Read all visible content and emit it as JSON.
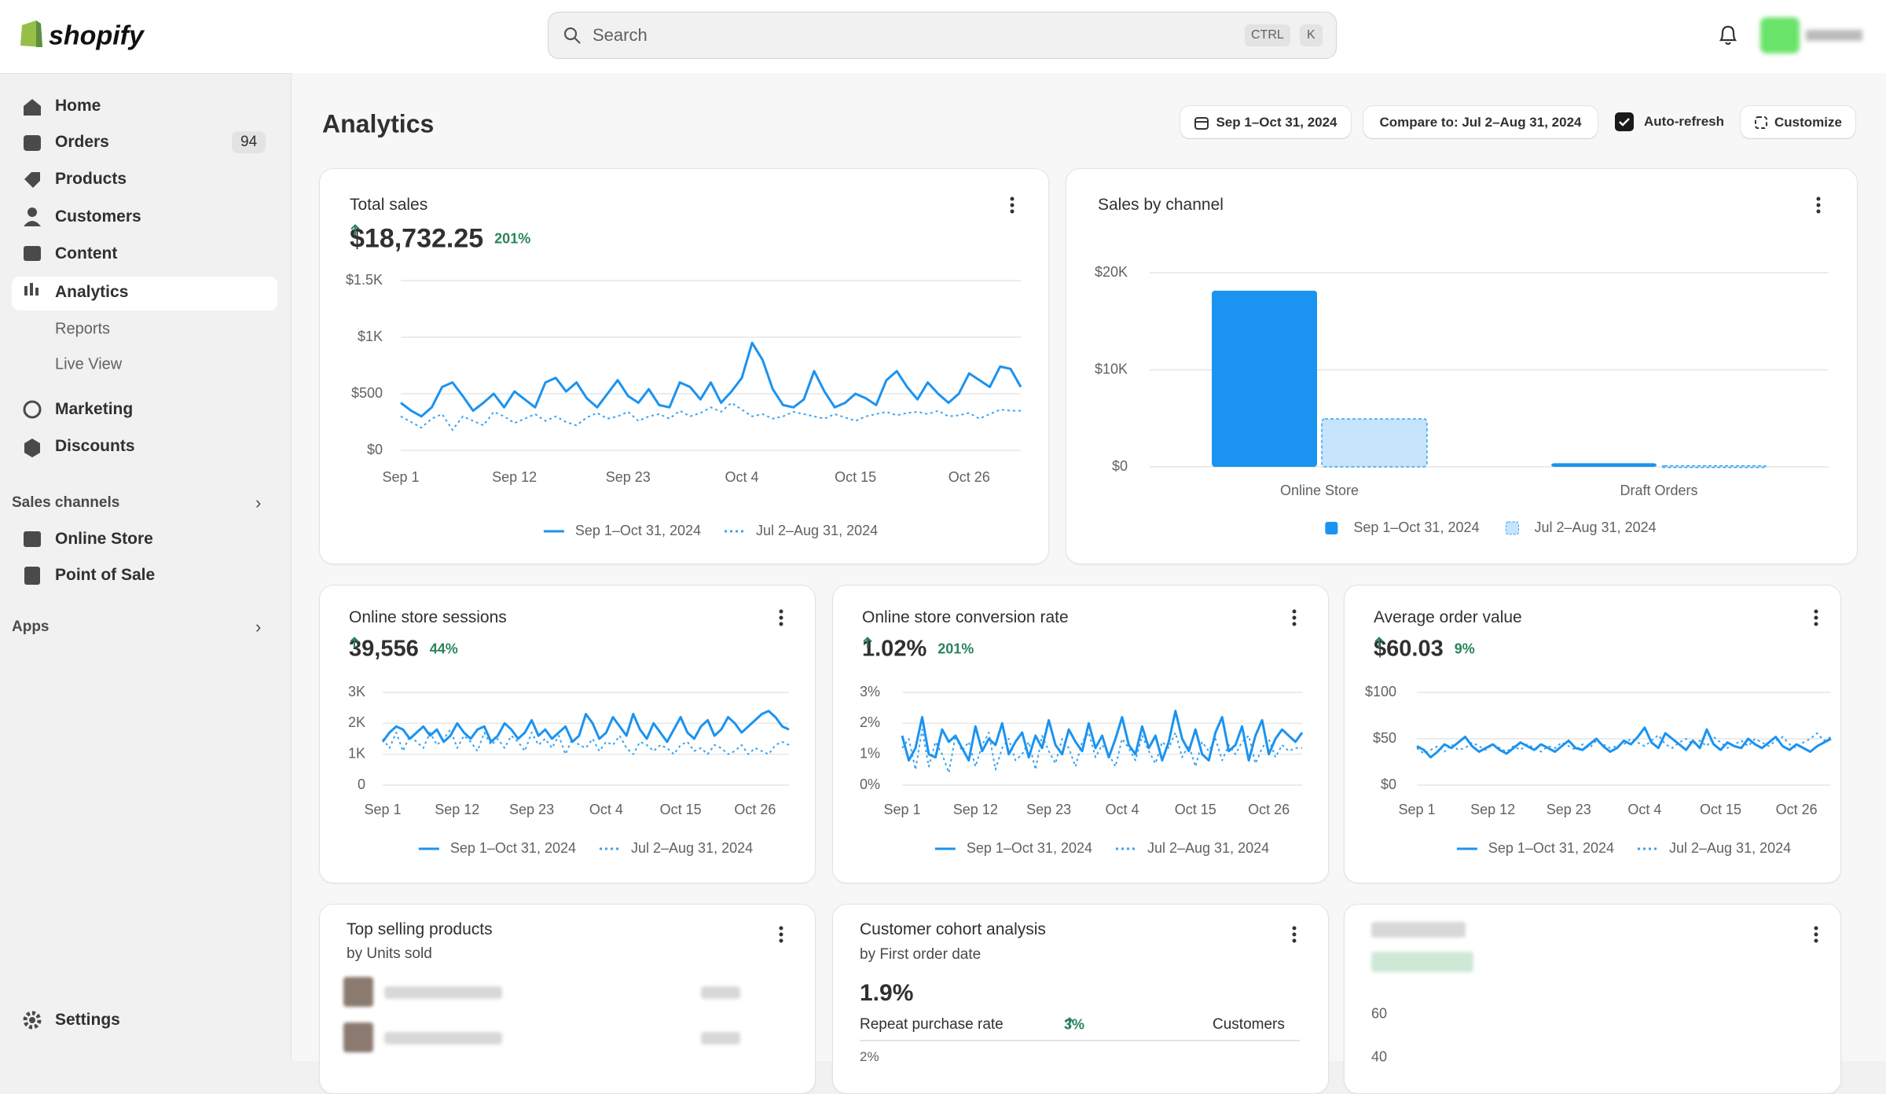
{
  "header": {
    "logo": "shopify",
    "search": "Search",
    "shortcut": [
      "CTRL",
      "K"
    ]
  },
  "nav": {
    "items": [
      {
        "label": "Home"
      },
      {
        "label": "Orders",
        "badge": 94
      },
      {
        "label": "Products"
      },
      {
        "label": "Customers"
      },
      {
        "label": "Content"
      },
      {
        "label": "Analytics"
      }
    ],
    "analytics_sub": [
      "Reports",
      "Live View"
    ],
    "items2": [
      "Marketing",
      "Discounts"
    ],
    "sales_channels": "Sales channels",
    "channels": [
      "Online Store",
      "Point of Sale"
    ],
    "apps": "Apps",
    "settings": "Settings"
  },
  "page": {
    "title": "Analytics",
    "date_range": "Sep 1–Oct 31, 2024",
    "compare": "Compare to: Jul 2–Aug 31, 2024",
    "auto_refresh": "Auto-refresh",
    "customize": "Customize"
  },
  "cards": [
    {
      "title": "Total sales",
      "metric": "$18,732.25",
      "change": "201%",
      "chart": {
        "type": "line",
        "categories": [
          "Sep 1",
          null,
          null,
          null,
          null,
          null,
          null,
          null,
          null,
          null,
          null,
          "Sep 12",
          null,
          null,
          null,
          null,
          null,
          null,
          null,
          null,
          null,
          null,
          "Sep 23",
          null,
          null,
          null,
          null,
          null,
          null,
          null,
          null,
          null,
          null,
          "Oct 4",
          null,
          null,
          null,
          null,
          null,
          null,
          null,
          null,
          null,
          null,
          "Oct 15",
          null,
          null,
          null,
          null,
          null,
          null,
          null,
          null,
          null,
          null,
          "Oct 26",
          null,
          null,
          null,
          null,
          null
        ],
        "ylim": [
          0,
          1500
        ],
        "yticks": [
          {
            "value": 0,
            "label": "$0"
          },
          {
            "value": 500,
            "label": "$500"
          },
          {
            "value": 1000,
            "label": "$1K"
          },
          {
            "value": 1500,
            "label": "$1.5K"
          }
        ],
        "grid": true,
        "series": [
          {
            "name": "Sep 1–Oct 31, 2024",
            "color": "#1b93f0",
            "line_style": "solid",
            "values": [
              420,
              350,
              300,
              380,
              560,
              600,
              480,
              350,
              420,
              500,
              380,
              520,
              450,
              380,
              600,
              640,
              520,
              600,
              460,
              380,
              500,
              620,
              480,
              420,
              540,
              400,
              380,
              600,
              560,
              450,
              600,
              420,
              520,
              640,
              950,
              800,
              540,
              400,
              380,
              450,
              700,
              520,
              380,
              420,
              500,
              460,
              400,
              620,
              700,
              560,
              450,
              600,
              500,
              420,
              500,
              680,
              620,
              560,
              740,
              720,
              560
            ]
          },
          {
            "name": "Jul 2–Aug 31, 2024",
            "color": "#3aa3ee",
            "line_style": "dotted",
            "values": [
              300,
              250,
              200,
              280,
              320,
              180,
              300,
              260,
              220,
              340,
              300,
              240,
              280,
              320,
              260,
              300,
              250,
              220,
              290,
              330,
              280,
              300,
              340,
              260,
              300,
              320,
              280,
              350,
              300,
              330,
              380,
              340,
              420,
              360,
              300,
              320,
              280,
              300,
              340,
              320,
              300,
              280,
              320,
              290,
              260,
              300,
              320,
              340,
              310,
              330,
              340,
              320,
              350,
              300,
              310,
              330,
              280,
              320,
              360,
              350,
              350
            ]
          }
        ]
      }
    },
    {
      "title": "Sales by channel",
      "chart": {
        "type": "bar",
        "categories": [
          "Online Store",
          "Draft Orders"
        ],
        "ylim": [
          0,
          20000
        ],
        "yticks": [
          {
            "value": 0,
            "label": "$0"
          },
          {
            "value": 10000,
            "label": "$10K"
          },
          {
            "value": 20000,
            "label": "$20K"
          }
        ],
        "grid": true,
        "series": [
          {
            "name": "Sep 1–Oct 31, 2024",
            "color": "#1b93f0",
            "border_style": "none",
            "values": [
              18150,
              370
            ]
          },
          {
            "name": "Jul 2–Aug 31, 2024",
            "color": "#c6e4fb",
            "border_style": "dashed",
            "border_color": "#3aa3ee",
            "values": [
              4940,
              100
            ]
          }
        ]
      }
    },
    {
      "title": "Online store sessions",
      "metric": "39,556",
      "change": "44%",
      "chart": {
        "type": "line",
        "categories": [
          "Sep 1",
          null,
          null,
          null,
          null,
          null,
          null,
          null,
          null,
          null,
          null,
          "Sep 12",
          null,
          null,
          null,
          null,
          null,
          null,
          null,
          null,
          null,
          null,
          "Sep 23",
          null,
          null,
          null,
          null,
          null,
          null,
          null,
          null,
          null,
          null,
          "Oct 4",
          null,
          null,
          null,
          null,
          null,
          null,
          null,
          null,
          null,
          null,
          "Oct 15",
          null,
          null,
          null,
          null,
          null,
          null,
          null,
          null,
          null,
          null,
          "Oct 26",
          null,
          null,
          null,
          null,
          null
        ],
        "ylim": [
          0,
          3000
        ],
        "yticks": [
          0,
          {
            "value": 1000,
            "label": "1K"
          },
          {
            "value": 2000,
            "label": "2K"
          },
          {
            "value": 3000,
            "label": "3K"
          }
        ],
        "grid": true,
        "series": [
          {
            "name": "Sep 1–Oct 31, 2024",
            "color": "#1b93f0",
            "line_style": "solid",
            "values": [
              1400,
              1700,
              1900,
              1800,
              1500,
              1700,
              1900,
              1600,
              1800,
              1400,
              1600,
              2000,
              1700,
              1500,
              1800,
              1900,
              1400,
              1600,
              2000,
              1800,
              1500,
              1700,
              2100,
              1600,
              1800,
              1500,
              1700,
              1900,
              1400,
              1600,
              2300,
              2000,
              1500,
              1700,
              2200,
              1900,
              1600,
              2300,
              1800,
              1500,
              2000,
              1700,
              1400,
              1800,
              2200,
              1700,
              1500,
              1900,
              2100,
              1600,
              1800,
              2200,
              2000,
              1700,
              1900,
              2100,
              2300,
              2400,
              2200,
              1900,
              1800
            ]
          },
          {
            "name": "Jul 2–Aug 31, 2024",
            "color": "#3aa3ee",
            "line_style": "dotted",
            "values": [
              1500,
              1200,
              1700,
              1100,
              1600,
              1400,
              1200,
              1700,
              1300,
              1500,
              1800,
              1200,
              1600,
              1400,
              1100,
              1700,
              1300,
              1500,
              1200,
              1600,
              1400,
              1100,
              1700,
              1300,
              1500,
              1200,
              1600,
              1000,
              1500,
              1300,
              1200,
              1500,
              1100,
              1400,
              1300,
              1600,
              1200,
              1000,
              1400,
              1300,
              1100,
              1300,
              1200,
              1000,
              1300,
              1400,
              1100,
              1200,
              1000,
              1300,
              1200,
              1000,
              1100,
              1300,
              1000,
              1200,
              1100,
              1000,
              1300,
              1400,
              1300
            ]
          }
        ]
      }
    },
    {
      "title": "Online store conversion rate",
      "metric": "1.02%",
      "change": "201%",
      "chart": {
        "type": "line",
        "categories": [
          "Sep 1",
          null,
          null,
          null,
          null,
          null,
          null,
          null,
          null,
          null,
          null,
          "Sep 12",
          null,
          null,
          null,
          null,
          null,
          null,
          null,
          null,
          null,
          null,
          "Sep 23",
          null,
          null,
          null,
          null,
          null,
          null,
          null,
          null,
          null,
          null,
          "Oct 4",
          null,
          null,
          null,
          null,
          null,
          null,
          null,
          null,
          null,
          null,
          "Oct 15",
          null,
          null,
          null,
          null,
          null,
          null,
          null,
          null,
          null,
          null,
          "Oct 26",
          null,
          null,
          null,
          null,
          null
        ],
        "ylim": [
          0,
          3
        ],
        "yticks": [
          {
            "value": 0,
            "label": "0%"
          },
          {
            "value": 1,
            "label": "1%"
          },
          {
            "value": 2,
            "label": "2%"
          },
          {
            "value": 3,
            "label": "3%"
          }
        ],
        "grid": true,
        "series": [
          {
            "name": "Sep 1–Oct 31, 2024",
            "color": "#1b93f0",
            "line_style": "solid",
            "values": [
              1.6,
              0.8,
              1.2,
              2.2,
              1.0,
              0.9,
              1.8,
              1.4,
              1.6,
              1.2,
              0.8,
              1.9,
              1.1,
              1.5,
              1.3,
              2.0,
              1.0,
              1.4,
              1.7,
              0.9,
              1.6,
              1.2,
              2.1,
              1.3,
              1.0,
              1.8,
              1.4,
              1.1,
              2.0,
              1.2,
              1.6,
              0.9,
              1.5,
              2.2,
              1.3,
              1.0,
              1.9,
              1.2,
              1.6,
              0.8,
              1.4,
              2.4,
              1.5,
              1.1,
              1.8,
              1.0,
              0.8,
              1.7,
              2.2,
              1.1,
              1.3,
              1.9,
              0.8,
              1.6,
              2.1,
              1.0,
              1.5,
              1.8,
              1.6,
              1.4,
              1.7
            ]
          },
          {
            "name": "Jul 2–Aug 31, 2024",
            "color": "#3aa3ee",
            "line_style": "dotted",
            "values": [
              1.2,
              1.5,
              0.5,
              1.8,
              0.6,
              1.4,
              1.0,
              0.4,
              1.6,
              1.1,
              1.4,
              0.6,
              1.3,
              1.7,
              0.5,
              1.2,
              1.5,
              0.8,
              1.0,
              1.4,
              0.5,
              1.6,
              1.1,
              0.7,
              1.5,
              1.2,
              0.6,
              1.4,
              1.7,
              0.9,
              1.3,
              1.0,
              0.6,
              1.5,
              1.2,
              0.8,
              1.6,
              1.1,
              0.7,
              1.4,
              1.2,
              1.7,
              0.9,
              1.3,
              0.6,
              1.4,
              1.1,
              1.5,
              0.8,
              1.3,
              1.0,
              1.4,
              1.6,
              0.7,
              1.2,
              1.5,
              0.9,
              1.3,
              1.1,
              1.2,
              1.2
            ]
          }
        ]
      }
    },
    {
      "title": "Average order value",
      "metric": "$60.03",
      "change": "9%",
      "chart": {
        "type": "line",
        "categories": [
          "Sep 1",
          null,
          null,
          null,
          null,
          null,
          null,
          null,
          null,
          null,
          null,
          "Sep 12",
          null,
          null,
          null,
          null,
          null,
          null,
          null,
          null,
          null,
          null,
          "Sep 23",
          null,
          null,
          null,
          null,
          null,
          null,
          null,
          null,
          null,
          null,
          "Oct 4",
          null,
          null,
          null,
          null,
          null,
          null,
          null,
          null,
          null,
          null,
          "Oct 15",
          null,
          null,
          null,
          null,
          null,
          null,
          null,
          null,
          null,
          null,
          "Oct 26",
          null,
          null,
          null,
          null,
          null
        ],
        "ylim": [
          0,
          100
        ],
        "yticks": [
          {
            "value": 0,
            "label": "$0"
          },
          {
            "value": 50,
            "label": "$50"
          },
          {
            "value": 100,
            "label": "$100"
          }
        ],
        "grid": true,
        "series": [
          {
            "name": "Sep 1–Oct 31, 2024",
            "color": "#1b93f0",
            "line_style": "solid",
            "values": [
              42,
              38,
              30,
              36,
              44,
              40,
              46,
              52,
              42,
              36,
              40,
              44,
              38,
              34,
              40,
              46,
              42,
              38,
              44,
              40,
              36,
              42,
              48,
              40,
              38,
              44,
              50,
              42,
              36,
              40,
              48,
              44,
              52,
              62,
              46,
              40,
              56,
              50,
              44,
              38,
              48,
              40,
              60,
              44,
              38,
              46,
              42,
              40,
              50,
              44,
              40,
              46,
              52,
              42,
              38,
              44,
              40,
              36,
              42,
              46,
              50
            ]
          },
          {
            "name": "Jul 2–Aug 31, 2024",
            "color": "#3aa3ee",
            "line_style": "dotted",
            "values": [
              40,
              34,
              38,
              42,
              36,
              44,
              38,
              40,
              46,
              42,
              38,
              44,
              40,
              36,
              42,
              38,
              44,
              40,
              36,
              42,
              40,
              46,
              42,
              38,
              44,
              40,
              48,
              44,
              40,
              42,
              44,
              50,
              46,
              42,
              48,
              54,
              44,
              40,
              46,
              50,
              44,
              48,
              42,
              52,
              46,
              40,
              44,
              48,
              42,
              50,
              46,
              42,
              48,
              52,
              44,
              40,
              46,
              50,
              56,
              48,
              52
            ]
          }
        ]
      }
    },
    {
      "title": "Top selling products",
      "subtitle": "by Units sold"
    },
    {
      "title": "Customer cohort analysis",
      "subtitle": "by First order date",
      "metric": "1.9%",
      "metric_label": "Repeat purchase rate",
      "change": "3%",
      "column": "Customers",
      "axis_label": "2%"
    },
    {
      "axis_labels": [
        60,
        40
      ]
    }
  ]
}
